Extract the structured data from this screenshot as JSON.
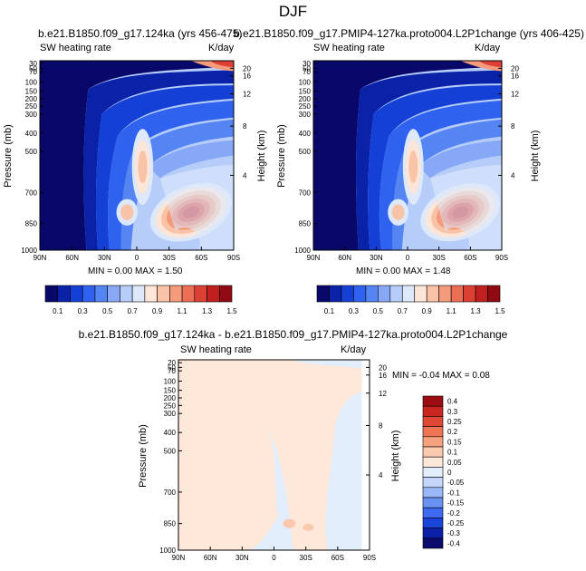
{
  "figure": {
    "title": "DJF"
  },
  "palette_main": [
    "#08086b",
    "#0a22a8",
    "#1540d6",
    "#2f62ee",
    "#5585f3",
    "#86a8f6",
    "#b6cdf9",
    "#dde9fb",
    "#fde5d8",
    "#f9c3a7",
    "#f49b7c",
    "#ec6f55",
    "#dc4034",
    "#c21f1f",
    "#900a14"
  ],
  "palette_diff": [
    "#0b0b6e",
    "#0a20a6",
    "#1a43d9",
    "#3d6af0",
    "#6a92f3",
    "#9ab8f7",
    "#c3d7fa",
    "#e3eefc",
    "#fde8da",
    "#fbc9ad",
    "#f6a27f",
    "#ee7453",
    "#e04836",
    "#c8261e",
    "#9b0d12"
  ],
  "chart_data": [
    {
      "type": "contour",
      "title": "b.e21.B1850.f09_g17.124ka (yrs 456-475)",
      "left_label": "SW heating rate",
      "right_label": "K/day",
      "ylabel": "Pressure (mb)",
      "ylabel_right": "Height (km)",
      "x_ticks": [
        "90N",
        "60N",
        "30N",
        "0",
        "30S",
        "60S",
        "90S"
      ],
      "y_ticks": [
        "30",
        "50",
        "70",
        "100",
        "150",
        "200",
        "250",
        "300",
        "400",
        "500",
        "700",
        "850",
        "1000"
      ],
      "height_ticks": [
        "20",
        "16",
        "12",
        "8",
        "4"
      ],
      "stats": "MIN =   0.00   MAX =   1.50",
      "min": 0.0,
      "max": 1.5
    },
    {
      "type": "contour",
      "title": "b.e21.B1850.f09_g17.PMIP4-127ka.proto004.L2P1change (yrs 406-425)",
      "left_label": "SW heating rate",
      "right_label": "K/day",
      "ylabel": "Pressure (mb)",
      "ylabel_right": "Height (km)",
      "x_ticks": [
        "90N",
        "60N",
        "30N",
        "0",
        "30S",
        "60S",
        "90S"
      ],
      "y_ticks": [
        "30",
        "50",
        "70",
        "100",
        "150",
        "200",
        "250",
        "300",
        "400",
        "500",
        "700",
        "850",
        "1000"
      ],
      "height_ticks": [
        "20",
        "16",
        "12",
        "8",
        "4"
      ],
      "stats": "MIN =   0.00   MAX =   1.48",
      "min": 0.0,
      "max": 1.48
    },
    {
      "type": "contour",
      "title": "b.e21.B1850.f09_g17.124ka - b.e21.B1850.f09_g17.PMIP4-127ka.proto004.L2P1change",
      "left_label": "SW heating rate",
      "right_label": "K/day",
      "ylabel": "Pressure (mb)",
      "ylabel_right": "Height (km)",
      "x_ticks": [
        "90N",
        "60N",
        "30N",
        "0",
        "30S",
        "60S",
        "90S"
      ],
      "y_ticks": [
        "20",
        "50",
        "70",
        "100",
        "150",
        "200",
        "250",
        "300",
        "400",
        "500",
        "700",
        "850",
        "1000"
      ],
      "height_ticks": [
        "20",
        "16",
        "12",
        "8",
        "4"
      ],
      "stats": "MIN =  -0.04   MAX =   0.08",
      "min": -0.04,
      "max": 0.08
    }
  ],
  "colorbar_main": {
    "labels": [
      "0.1",
      "0.3",
      "0.5",
      "0.7",
      "0.9",
      "1.1",
      "1.3",
      "1.5"
    ]
  },
  "colorbar_diff": {
    "labels": [
      "0.4",
      "0.3",
      "0.25",
      "0.2",
      "0.15",
      "0.1",
      "0.05",
      "0",
      "-0.05",
      "-0.1",
      "-0.15",
      "-0.2",
      "-0.25",
      "-0.3",
      "-0.4"
    ]
  }
}
